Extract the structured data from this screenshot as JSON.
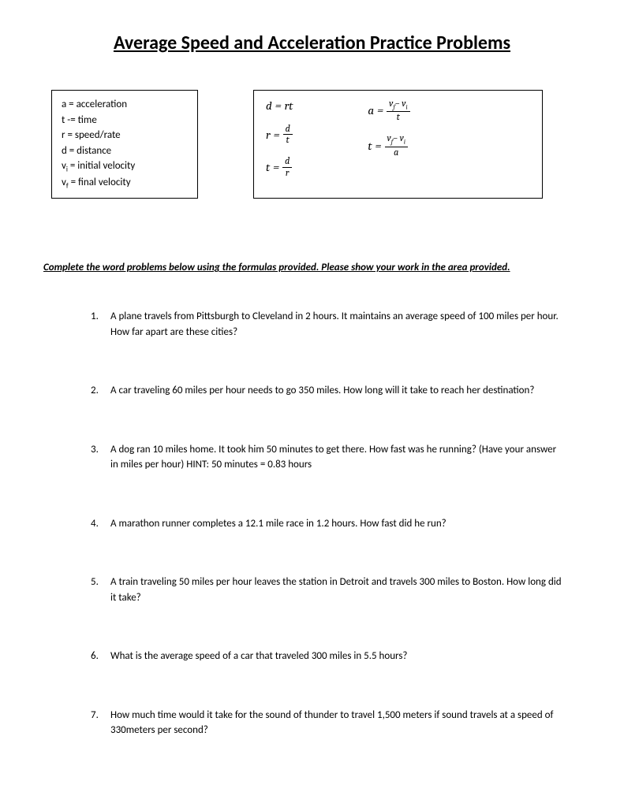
{
  "title": "Average Speed and Acceleration Practice Problems",
  "definitions": {
    "a": "a = acceleration",
    "t": "t -= time",
    "r": "r = speed/rate",
    "d": "d = distance",
    "vi_pre": "v",
    "vi_sub": "i",
    "vi_post": " = initial velocity",
    "vf_pre": "v",
    "vf_sub": "f",
    "vf_post": " = final velocity"
  },
  "formulas": {
    "d": "d",
    "r": "r",
    "t": "t",
    "a": "a",
    "eq": "=",
    "rt": "rt",
    "vf": "v",
    "vf_sub": "f",
    "minus": "−",
    "vi": "v",
    "vi_sub": "i"
  },
  "instruction": "Complete the word problems below using the formulas provided.  Please show your work in the area provided.",
  "problems": [
    {
      "num": "1.",
      "text": " A plane travels from Pittsburgh to Cleveland in 2 hours.  It maintains an average speed of 100 miles per hour.  How far apart are these cities?"
    },
    {
      "num": "2.",
      "text": "A car traveling 60 miles per hour needs to go 350 miles.  How long will it take to reach her destination?"
    },
    {
      "num": "3.",
      "text": "A dog ran 10 miles home.  It took him 50 minutes to get there.  How fast was he running? (Have your answer in miles per hour)  HINT: 50 minutes = 0.83 hours"
    },
    {
      "num": "4.",
      "text": "A marathon runner completes a 12.1 mile race in 1.2 hours.  How fast did he run?"
    },
    {
      "num": "5.",
      "text": "A train traveling 50 miles per hour leaves the station in Detroit and travels 300 miles to Boston.  How long did it take?"
    },
    {
      "num": "6.",
      "text": "What is the average speed of a car that traveled 300 miles in 5.5 hours?"
    },
    {
      "num": "7.",
      "text": "How much time would it take for the sound of thunder to travel 1,500 meters if sound travels at a speed of 330meters per second?"
    }
  ]
}
